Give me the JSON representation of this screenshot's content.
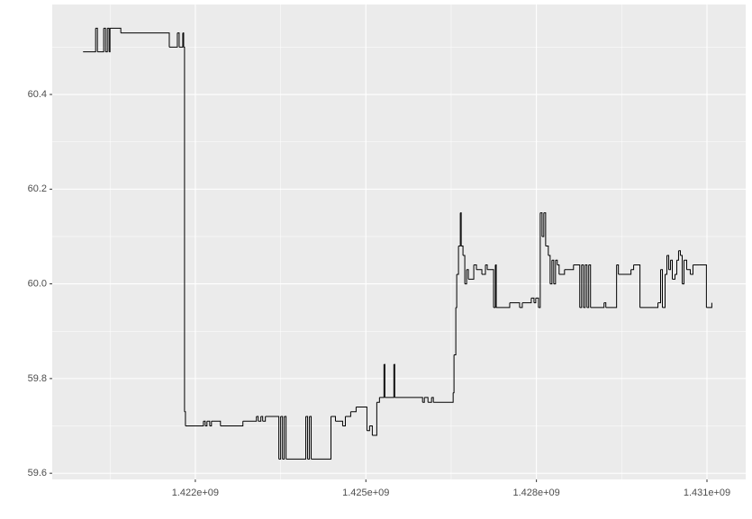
{
  "chart_data": {
    "type": "step",
    "xlim": [
      1419483000,
      1431681000
    ],
    "ylim": [
      59.587,
      60.59
    ],
    "xticks": [
      {
        "value": 1422000000,
        "label": "1.422e+09"
      },
      {
        "value": 1425000000,
        "label": "1.425e+09"
      },
      {
        "value": 1428000000,
        "label": "1.428e+09"
      },
      {
        "value": 1431000000,
        "label": "1.431e+09"
      }
    ],
    "yticks": [
      59.6,
      59.8,
      {
        "value": 60,
        "label": "60.0"
      },
      60.2,
      60.4
    ],
    "x_minor_breaks": [
      1420500000,
      1423500000,
      1426500000,
      1429500000
    ],
    "y_minor_breaks": [
      59.7,
      59.9,
      60.1,
      60.3,
      60.5
    ],
    "grid": true,
    "series": [
      {
        "color": "#000000",
        "x": [
          1420025000,
          1420246000,
          1420278000,
          1420388000,
          1420420000,
          1420452000,
          1420483000,
          1420499000,
          1420689000,
          1421542000,
          1421684000,
          1421716000,
          1421779000,
          1421795000,
          1421810000,
          1421826000,
          1422142000,
          1422174000,
          1422205000,
          1422253000,
          1422284000,
          1422442000,
          1422837000,
          1423074000,
          1423106000,
          1423153000,
          1423185000,
          1423232000,
          1423469000,
          1423501000,
          1423533000,
          1423564000,
          1423596000,
          1423943000,
          1423975000,
          1424007000,
          1424038000,
          1424386000,
          1424465000,
          1424591000,
          1424639000,
          1424733000,
          1424828000,
          1425018000,
          1425065000,
          1425113000,
          1425192000,
          1425239000,
          1425318000,
          1425334000,
          1425492000,
          1425508000,
          1425997000,
          1426029000,
          1426092000,
          1426155000,
          1426187000,
          1426535000,
          1426550000,
          1426582000,
          1426598000,
          1426629000,
          1426661000,
          1426677000,
          1426708000,
          1426740000,
          1426772000,
          1426803000,
          1426898000,
          1426945000,
          1427040000,
          1427103000,
          1427135000,
          1427246000,
          1427277000,
          1427293000,
          1427530000,
          1427704000,
          1427751000,
          1427909000,
          1427957000,
          1427988000,
          1428036000,
          1428067000,
          1428099000,
          1428130000,
          1428162000,
          1428209000,
          1428241000,
          1428273000,
          1428304000,
          1428336000,
          1428367000,
          1428399000,
          1428494000,
          1428652000,
          1428762000,
          1428794000,
          1428826000,
          1428857000,
          1428889000,
          1428920000,
          1428952000,
          1429189000,
          1429221000,
          1429410000,
          1429442000,
          1429663000,
          1429710000,
          1429821000,
          1430137000,
          1430184000,
          1430216000,
          1430263000,
          1430295000,
          1430327000,
          1430358000,
          1430390000,
          1430437000,
          1430469000,
          1430500000,
          1430532000,
          1430564000,
          1430595000,
          1430643000,
          1430706000,
          1430753000,
          1430864000,
          1430990000,
          1431085000
        ],
        "values": [
          60.49,
          60.54,
          60.49,
          60.54,
          60.49,
          60.54,
          60.49,
          60.54,
          60.53,
          60.5,
          60.53,
          60.5,
          60.53,
          60.5,
          59.73,
          59.7,
          59.71,
          59.7,
          59.71,
          59.7,
          59.71,
          59.7,
          59.71,
          59.72,
          59.71,
          59.72,
          59.71,
          59.72,
          59.63,
          59.72,
          59.63,
          59.72,
          59.63,
          59.72,
          59.63,
          59.72,
          59.63,
          59.72,
          59.71,
          59.7,
          59.72,
          59.73,
          59.74,
          59.69,
          59.7,
          59.68,
          59.75,
          59.76,
          59.83,
          59.76,
          59.83,
          59.76,
          59.75,
          59.76,
          59.75,
          59.76,
          59.75,
          59.77,
          59.85,
          59.95,
          60.02,
          60.08,
          60.15,
          60.08,
          60.06,
          60.0,
          60.03,
          60.01,
          60.04,
          60.03,
          60.02,
          60.04,
          60.03,
          59.95,
          60.04,
          59.95,
          59.96,
          59.95,
          59.96,
          59.97,
          59.96,
          59.97,
          59.95,
          60.15,
          60.1,
          60.15,
          60.08,
          60.06,
          60.0,
          60.05,
          60.0,
          60.05,
          60.04,
          60.02,
          60.03,
          60.04,
          59.95,
          60.04,
          59.95,
          60.04,
          59.95,
          60.04,
          59.95,
          59.96,
          59.95,
          60.04,
          60.02,
          60.03,
          60.04,
          59.95,
          59.96,
          60.03,
          59.95,
          60.02,
          60.06,
          60.03,
          60.05,
          60.01,
          60.02,
          60.05,
          60.07,
          60.06,
          60.0,
          60.05,
          60.03,
          60.02,
          60.04,
          60.04,
          59.95,
          59.96
        ]
      }
    ]
  }
}
